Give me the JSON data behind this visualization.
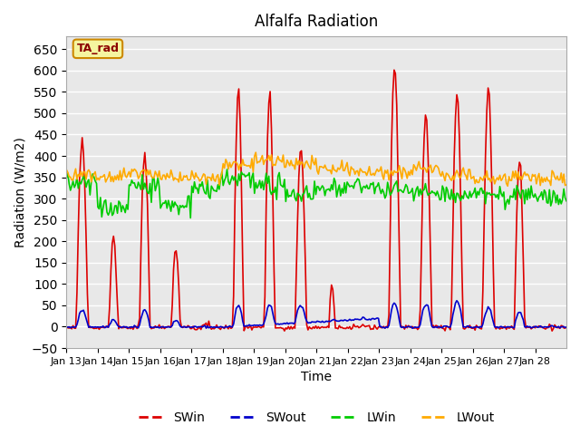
{
  "title": "Alfalfa Radiation",
  "xlabel": "Time",
  "ylabel": "Radiation (W/m2)",
  "ylim": [
    -50,
    680
  ],
  "yticks": [
    -50,
    0,
    50,
    100,
    150,
    200,
    250,
    300,
    350,
    400,
    450,
    500,
    550,
    600,
    650
  ],
  "xtick_labels": [
    "Jan 13",
    "Jan 14",
    "Jan 15",
    "Jan 16",
    "Jan 17",
    "Jan 18",
    "Jan 19",
    "Jan 20",
    "Jan 21",
    "Jan 22",
    "Jan 23",
    "Jan 24",
    "Jan 25",
    "Jan 26",
    "Jan 27",
    "Jan 28"
  ],
  "legend_annotation": "TA_rad",
  "plot_bg_color": "#e8e8e8",
  "colors": {
    "SWin": "#dd0000",
    "SWout": "#0000cc",
    "LWin": "#00cc00",
    "LWout": "#ffaa00"
  },
  "line_width": 1.2
}
